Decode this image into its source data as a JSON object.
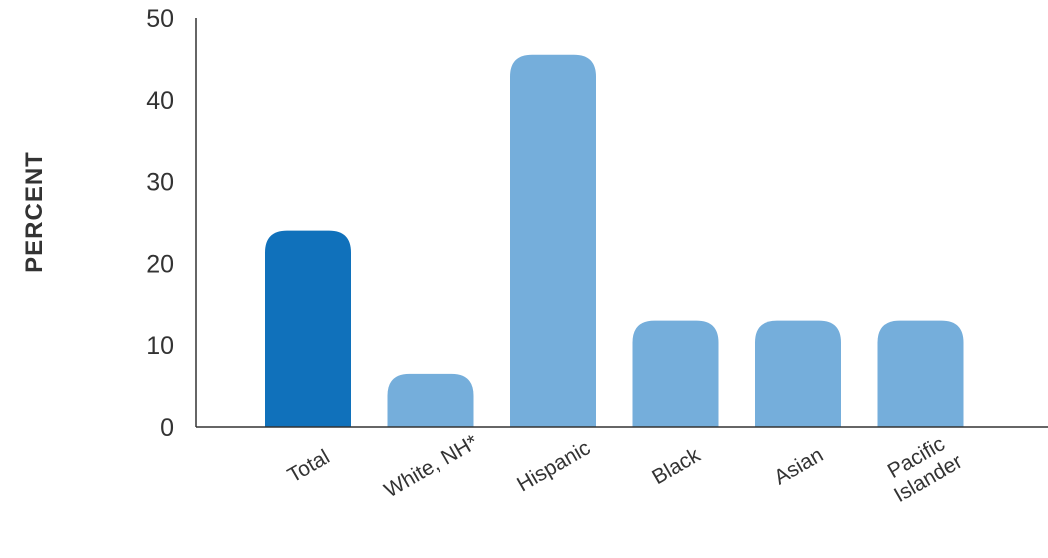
{
  "chart_data": {
    "type": "bar",
    "title": "",
    "xlabel": "",
    "ylabel": "PERCENT",
    "ylim": [
      0,
      50
    ],
    "yticks": [
      "0",
      "10",
      "20",
      "30",
      "40",
      "50"
    ],
    "grid": false,
    "legend": "none",
    "categories": [
      "Total",
      "White, NH*",
      "Hispanic",
      "Black",
      "Asian",
      "Pacific Islander"
    ],
    "values": [
      24,
      6.5,
      45.5,
      13,
      13,
      13
    ],
    "colors": [
      "#1071bb",
      "#75aedb",
      "#75aedb",
      "#75aedb",
      "#75aedb",
      "#75aedb"
    ]
  }
}
